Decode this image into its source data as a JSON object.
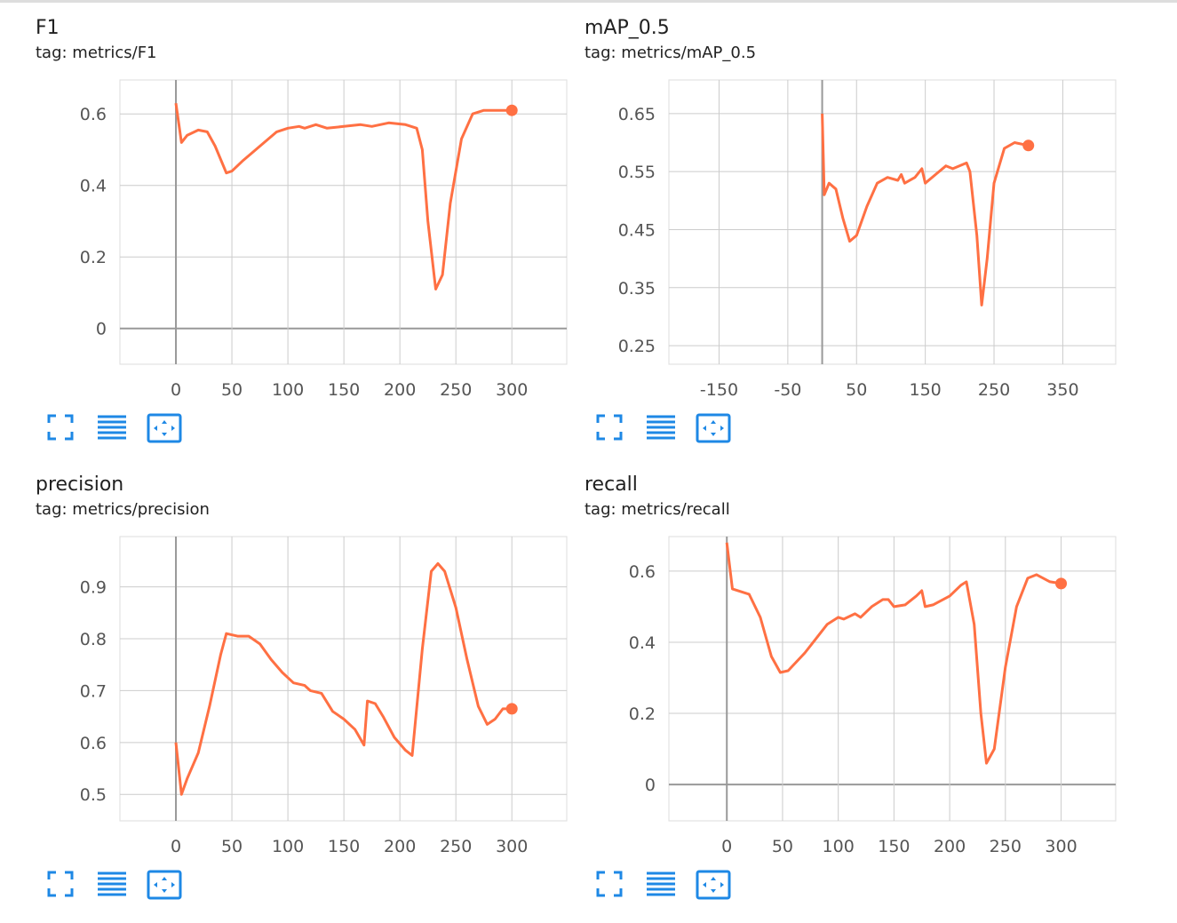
{
  "chart_data": [
    {
      "type": "line",
      "title": "F1",
      "subtitle": "tag: metrics/F1",
      "color": "#ff7043",
      "grid": true,
      "x": [
        0,
        5,
        10,
        20,
        28,
        35,
        45,
        50,
        60,
        75,
        90,
        100,
        110,
        115,
        125,
        135,
        150,
        165,
        175,
        190,
        205,
        215,
        220,
        225,
        232,
        238,
        245,
        255,
        265,
        275,
        300
      ],
      "values": [
        0.63,
        0.52,
        0.54,
        0.555,
        0.55,
        0.51,
        0.435,
        0.44,
        0.47,
        0.51,
        0.55,
        0.56,
        0.565,
        0.56,
        0.57,
        0.56,
        0.565,
        0.57,
        0.565,
        0.575,
        0.57,
        0.56,
        0.5,
        0.3,
        0.11,
        0.15,
        0.35,
        0.53,
        0.6,
        0.61,
        0.61
      ],
      "xlim": [
        -50,
        349
      ],
      "ylim": [
        -0.1,
        0.695
      ],
      "xticks": [
        0,
        50,
        100,
        150,
        200,
        250,
        300
      ],
      "yticks": [
        0,
        0.2,
        0.4,
        0.6
      ]
    },
    {
      "type": "line",
      "title": "mAP_0.5",
      "subtitle": "tag: metrics/mAP_0.5",
      "color": "#ff7043",
      "grid": true,
      "x": [
        0,
        3,
        10,
        20,
        30,
        40,
        50,
        65,
        80,
        95,
        110,
        115,
        120,
        135,
        145,
        150,
        165,
        180,
        190,
        210,
        215,
        225,
        232,
        240,
        250,
        265,
        280,
        300
      ],
      "values": [
        0.65,
        0.51,
        0.53,
        0.52,
        0.47,
        0.43,
        0.44,
        0.49,
        0.53,
        0.54,
        0.535,
        0.545,
        0.53,
        0.54,
        0.555,
        0.53,
        0.545,
        0.56,
        0.555,
        0.565,
        0.55,
        0.44,
        0.32,
        0.4,
        0.53,
        0.59,
        0.6,
        0.595
      ],
      "xlim": [
        -223,
        427
      ],
      "ylim": [
        0.218,
        0.708
      ],
      "xticks": [
        -150,
        -50,
        50,
        150,
        250,
        350
      ],
      "yticks": [
        0.25,
        0.35,
        0.45,
        0.55,
        0.65
      ]
    },
    {
      "type": "line",
      "title": "precision",
      "subtitle": "tag: metrics/precision",
      "color": "#ff7043",
      "grid": true,
      "x": [
        0,
        5,
        10,
        20,
        30,
        40,
        45,
        55,
        65,
        75,
        85,
        95,
        105,
        115,
        120,
        130,
        140,
        150,
        160,
        168,
        171,
        178,
        185,
        195,
        205,
        211,
        220,
        228,
        234,
        240,
        250,
        260,
        270,
        278,
        285,
        292,
        300
      ],
      "values": [
        0.6,
        0.5,
        0.53,
        0.58,
        0.67,
        0.77,
        0.81,
        0.805,
        0.805,
        0.79,
        0.76,
        0.735,
        0.715,
        0.71,
        0.7,
        0.695,
        0.66,
        0.645,
        0.625,
        0.595,
        0.68,
        0.675,
        0.65,
        0.61,
        0.585,
        0.575,
        0.78,
        0.93,
        0.945,
        0.93,
        0.86,
        0.76,
        0.67,
        0.635,
        0.645,
        0.665,
        0.665
      ],
      "xlim": [
        -50,
        349
      ],
      "ylim": [
        0.449,
        0.997
      ],
      "xticks": [
        0,
        50,
        100,
        150,
        200,
        250,
        300
      ],
      "yticks": [
        0.5,
        0.6,
        0.7,
        0.8,
        0.9
      ]
    },
    {
      "type": "line",
      "title": "recall",
      "subtitle": "tag: metrics/recall",
      "color": "#ff7043",
      "grid": true,
      "x": [
        0,
        5,
        10,
        20,
        30,
        40,
        48,
        55,
        70,
        80,
        90,
        100,
        105,
        115,
        120,
        130,
        140,
        145,
        150,
        160,
        170,
        175,
        178,
        185,
        200,
        210,
        215,
        222,
        228,
        233,
        240,
        250,
        260,
        270,
        278,
        290,
        300
      ],
      "values": [
        0.68,
        0.55,
        0.545,
        0.535,
        0.47,
        0.36,
        0.315,
        0.32,
        0.37,
        0.41,
        0.45,
        0.47,
        0.465,
        0.48,
        0.47,
        0.5,
        0.52,
        0.52,
        0.5,
        0.505,
        0.53,
        0.545,
        0.5,
        0.505,
        0.53,
        0.56,
        0.57,
        0.45,
        0.2,
        0.06,
        0.1,
        0.33,
        0.5,
        0.58,
        0.59,
        0.57,
        0.565
      ],
      "xlim": [
        -52,
        349
      ],
      "ylim": [
        -0.102,
        0.697
      ],
      "xticks": [
        0,
        50,
        100,
        150,
        200,
        250,
        300
      ],
      "yticks": [
        0,
        0.2,
        0.4,
        0.6
      ]
    }
  ]
}
